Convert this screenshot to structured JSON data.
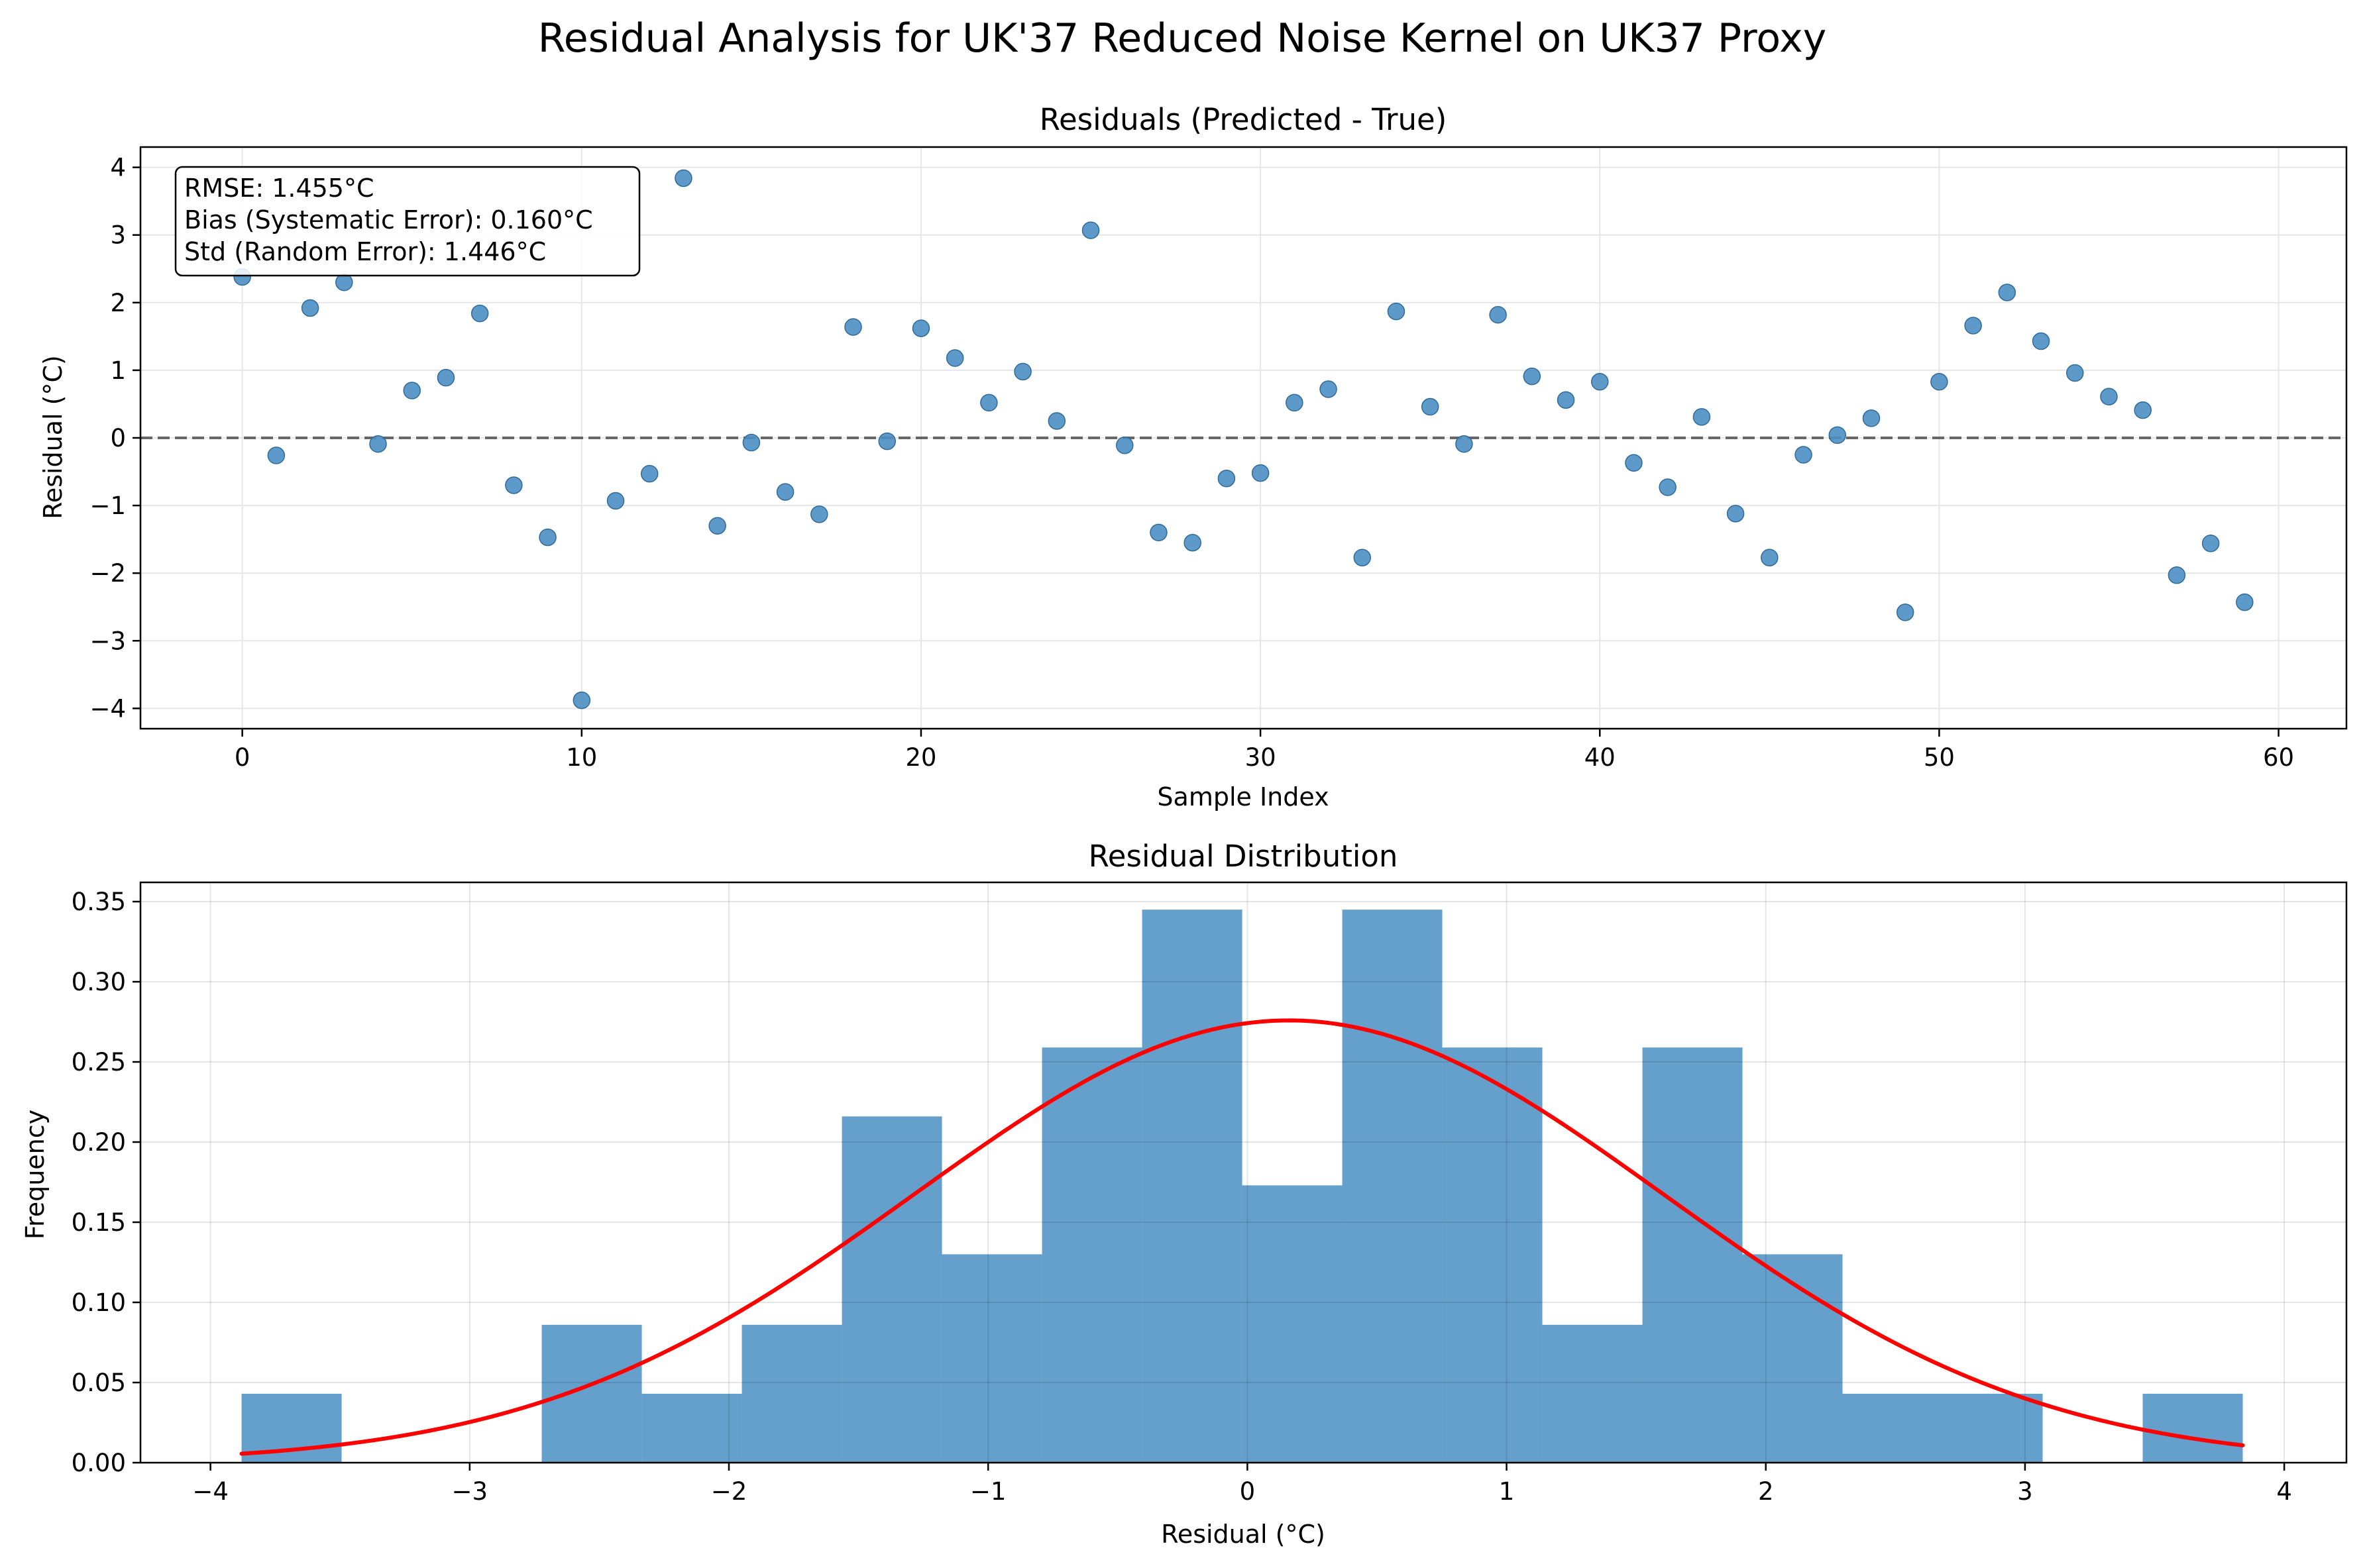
{
  "figure": {
    "suptitle": "Residual Analysis for UK'37 Reduced Noise Kernel on UK37 Proxy"
  },
  "stats": {
    "rmse": "RMSE: 1.455°C",
    "bias": "Bias (Systematic Error): 0.160°C",
    "std": "Std (Random Error): 1.446°C"
  },
  "chart_data": [
    {
      "type": "scatter",
      "title": "Residuals (Predicted - True)",
      "xlabel": "Sample Index",
      "ylabel": "Residual (°C)",
      "xlim": [
        -3,
        62
      ],
      "ylim": [
        -4.3,
        4.3
      ],
      "xticks": [
        0,
        10,
        20,
        30,
        40,
        50,
        60
      ],
      "xtick_labels": [
        "0",
        "10",
        "20",
        "30",
        "40",
        "50",
        "60"
      ],
      "yticks": [
        -4,
        -3,
        -2,
        -1,
        0,
        1,
        2,
        3,
        4
      ],
      "ytick_labels": [
        "−4",
        "−3",
        "−2",
        "−1",
        "0",
        "1",
        "2",
        "3",
        "4"
      ],
      "grid": true,
      "zero_line": 0,
      "point_color": "#4c8fc3",
      "zero_line_color": "#666666",
      "x": [
        0,
        1,
        2,
        3,
        4,
        5,
        6,
        7,
        8,
        9,
        10,
        11,
        12,
        13,
        14,
        15,
        16,
        17,
        18,
        19,
        20,
        21,
        22,
        23,
        24,
        25,
        26,
        27,
        28,
        29,
        30,
        31,
        32,
        33,
        34,
        35,
        36,
        37,
        38,
        39,
        40,
        41,
        42,
        43,
        44,
        45,
        46,
        47,
        48,
        49,
        50,
        51,
        52,
        53,
        54,
        55,
        56,
        57,
        58,
        59
      ],
      "y": [
        2.38,
        -0.26,
        1.92,
        2.3,
        -0.09,
        0.7,
        0.89,
        1.84,
        -0.7,
        -1.47,
        -3.88,
        -0.93,
        -0.53,
        3.84,
        -1.3,
        -0.07,
        -0.8,
        -1.13,
        1.64,
        -0.05,
        1.62,
        1.18,
        0.52,
        0.98,
        0.25,
        3.07,
        -0.11,
        -1.4,
        -1.55,
        -0.6,
        -0.52,
        0.52,
        0.72,
        -1.77,
        1.87,
        0.46,
        -0.09,
        1.82,
        0.91,
        0.56,
        0.83,
        -0.37,
        -0.73,
        0.31,
        -1.12,
        -1.77,
        -0.25,
        0.04,
        0.29,
        -2.58,
        0.83,
        1.66,
        2.15,
        1.43,
        0.96,
        0.61,
        0.41,
        -2.03,
        -1.56,
        -2.43
      ]
    },
    {
      "type": "bar",
      "title": "Residual Distribution",
      "xlabel": "Residual (°C)",
      "ylabel": "Frequency",
      "xlim": [
        -4.27,
        4.24
      ],
      "ylim": [
        0,
        0.362
      ],
      "xticks": [
        -4,
        -3,
        -2,
        -1,
        0,
        1,
        2,
        3,
        4
      ],
      "xtick_labels": [
        "−4",
        "−3",
        "−2",
        "−1",
        "0",
        "1",
        "2",
        "3",
        "4"
      ],
      "yticks": [
        0,
        0.05,
        0.1,
        0.15,
        0.2,
        0.25,
        0.3,
        0.35
      ],
      "ytick_labels": [
        "0.00",
        "0.05",
        "0.10",
        "0.15",
        "0.20",
        "0.25",
        "0.30",
        "0.35"
      ],
      "grid": true,
      "bar_color": "#64a0cb",
      "bin_edges": [
        -3.88,
        -3.494,
        -3.108,
        -2.722,
        -2.336,
        -1.95,
        -1.564,
        -1.178,
        -0.792,
        -0.406,
        -0.02,
        0.366,
        0.752,
        1.138,
        1.524,
        1.91,
        2.296,
        2.682,
        3.068,
        3.454,
        3.84
      ],
      "values": [
        0.043,
        0,
        0,
        0.086,
        0.043,
        0.086,
        0.216,
        0.13,
        0.259,
        0.345,
        0.173,
        0.345,
        0.259,
        0.086,
        0.259,
        0.13,
        0.043,
        0.043,
        0,
        0.043
      ],
      "curve": {
        "type": "line",
        "name": "normal fit",
        "color": "#ff0000",
        "mean": 0.16,
        "std": 1.446,
        "x_range": [
          -3.88,
          3.84
        ]
      }
    }
  ]
}
